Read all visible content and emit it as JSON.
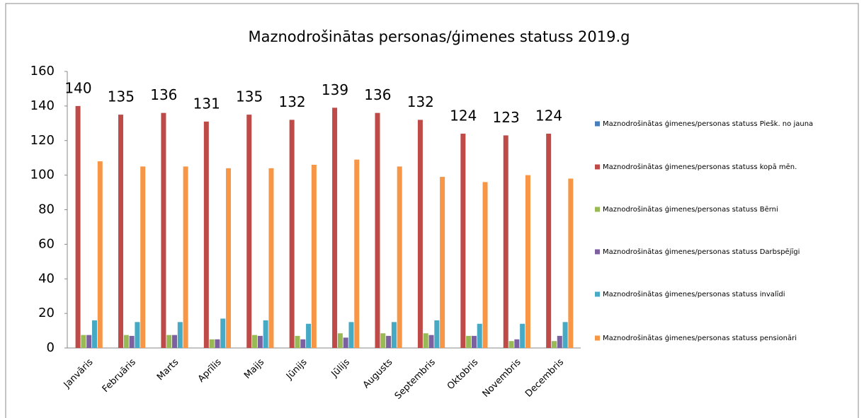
{
  "chart_data": {
    "type": "bar",
    "title": "Maznodrošinātas personas/ģimenes statuss 2019.g",
    "categories": [
      "Janvāris",
      "Februāris",
      "Marts",
      "Aprīlis",
      "Maijs",
      "Jūnijs",
      "Jūlijs",
      "Augusts",
      "Septembris",
      "Oktobris",
      "Novembris",
      "Decembris"
    ],
    "series": [
      {
        "name": "Maznodrošinātas ģimenes/personas statuss Piešk. no jauna",
        "color": "#4a7ebb",
        "values": [
          0,
          0,
          0,
          0,
          0,
          0,
          0,
          0,
          0,
          0,
          0,
          0
        ]
      },
      {
        "name": "Maznodrošinātas ģimenes/personas statuss kopā mēn.",
        "color": "#be4b48",
        "values": [
          140,
          135,
          136,
          131,
          135,
          132,
          139,
          136,
          132,
          124,
          123,
          124
        ],
        "labels": true
      },
      {
        "name": "Maznodrošinātas ģimenes/personas statuss Bērni",
        "color": "#98b954",
        "values": [
          7.5,
          7.5,
          7.5,
          5,
          7.5,
          7,
          8.5,
          8.5,
          8.5,
          7,
          4,
          4
        ]
      },
      {
        "name": "Maznodrošinātas ģimenes/personas statuss Darbspējīgi",
        "color": "#7d60a0",
        "values": [
          7.5,
          7,
          7.5,
          5,
          7,
          5,
          6,
          7,
          7.5,
          7,
          5,
          7
        ]
      },
      {
        "name": "Maznodrošinātas ģimenes/personas statuss invalīdi",
        "color": "#46aac5",
        "values": [
          16,
          15,
          15,
          17,
          16,
          14,
          15,
          15,
          16,
          14,
          14,
          15
        ]
      },
      {
        "name": "Maznodrošinātas ģimenes/personas statuss pensionāri",
        "color": "#f79646",
        "values": [
          108,
          105,
          105,
          104,
          104,
          106,
          109,
          105,
          99,
          96,
          100,
          98
        ]
      }
    ],
    "ylim": [
      0,
      160
    ],
    "yticks": [
      0,
      20,
      40,
      60,
      80,
      100,
      120,
      140,
      160
    ],
    "grid": false,
    "legend": "right"
  }
}
